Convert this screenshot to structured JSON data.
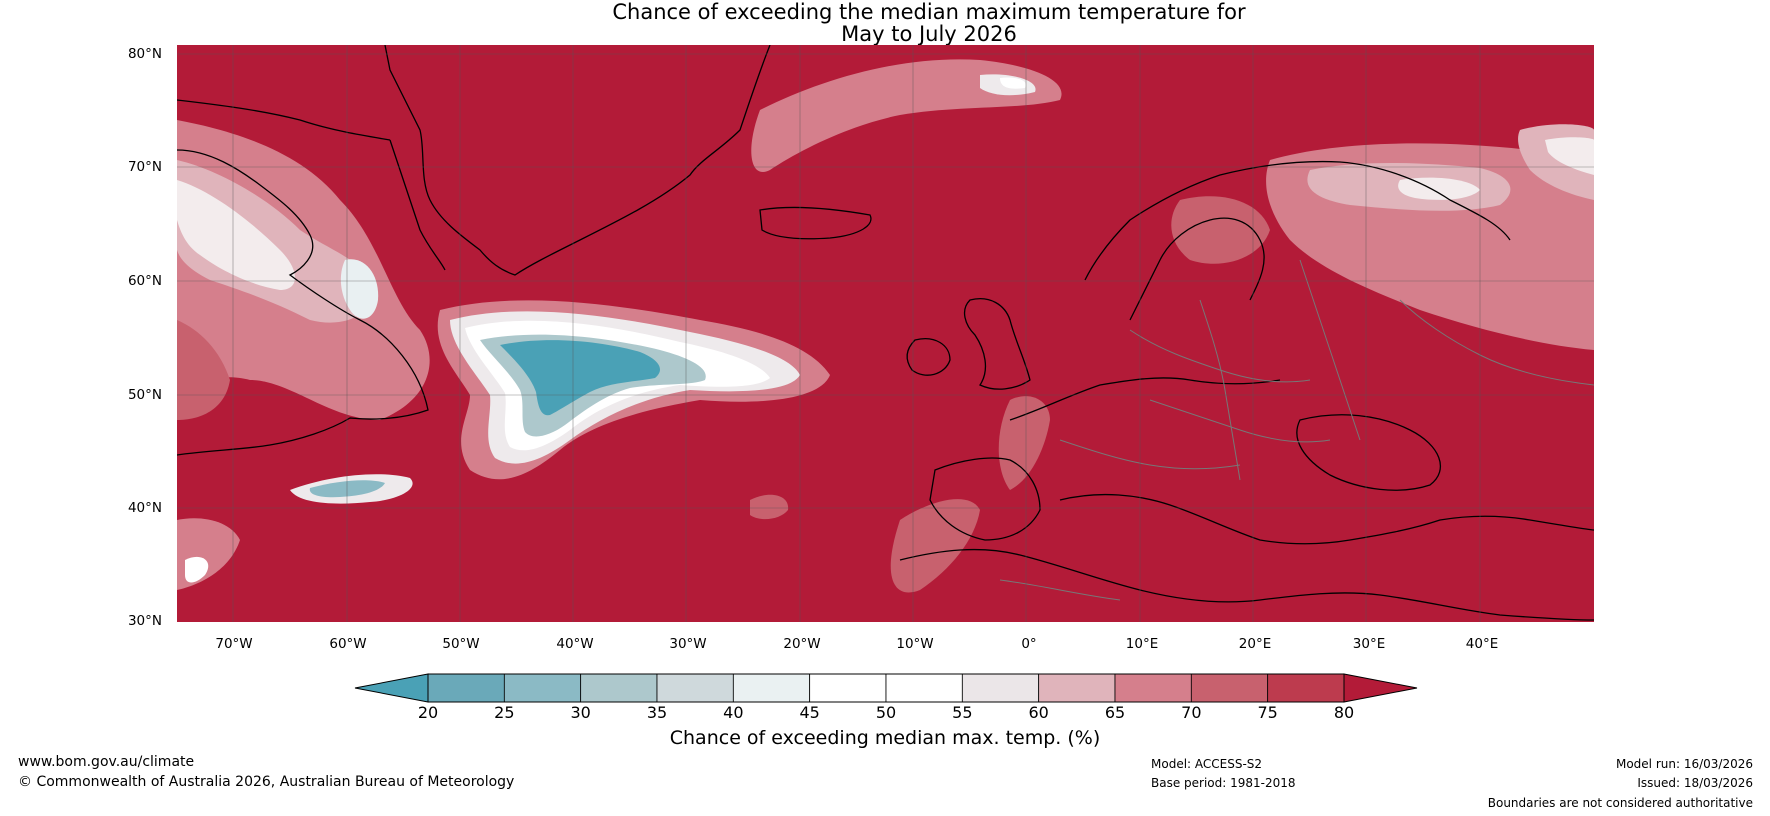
{
  "title": {
    "line1": "Chance of exceeding the median maximum temperature for",
    "line2": "May to July 2026"
  },
  "map": {
    "type": "filled-contour",
    "region": "North Atlantic and Europe",
    "lon_range": [
      -75,
      50
    ],
    "lat_range": [
      30,
      81
    ],
    "lat_labels": [
      "80°N",
      "70°N",
      "60°N",
      "50°N",
      "40°N",
      "30°N"
    ],
    "lon_labels": [
      "70°W",
      "60°W",
      "50°W",
      "40°W",
      "30°W",
      "20°W",
      "10°W",
      "0°",
      "10°E",
      "20°E",
      "30°E",
      "40°E"
    ],
    "gridlines": true,
    "colors": {
      "ocean_land_base": "#b31b38",
      "coastline": "#000000",
      "border": "#777777"
    }
  },
  "colorbar": {
    "ticks": [
      "20",
      "25",
      "30",
      "35",
      "40",
      "45",
      "50",
      "55",
      "60",
      "65",
      "70",
      "75",
      "80"
    ],
    "colors": [
      "#4aa1b6",
      "#6aa9b9",
      "#8bbac5",
      "#adc8cc",
      "#cfd9dc",
      "#eaf1f2",
      "#ffffff",
      "#ffffff",
      "#ebe6e8",
      "#e0b4bb",
      "#d57f8c",
      "#c8616e",
      "#bd3b4e",
      "#b31b38"
    ],
    "extend": "both",
    "label": "Chance of exceeding median max. temp. (%)"
  },
  "footer": {
    "website": "www.bom.gov.au/climate",
    "copyright": "© Commonwealth of Australia 2026, Australian Bureau of Meteorology",
    "model": "Model: ACCESS-S2",
    "base_period": "Base period: 1981-2018",
    "model_run": "Model run: 16/03/2026",
    "issued": "Issued: 18/03/2026",
    "disclaimer": "Boundaries are not considered authoritative"
  }
}
